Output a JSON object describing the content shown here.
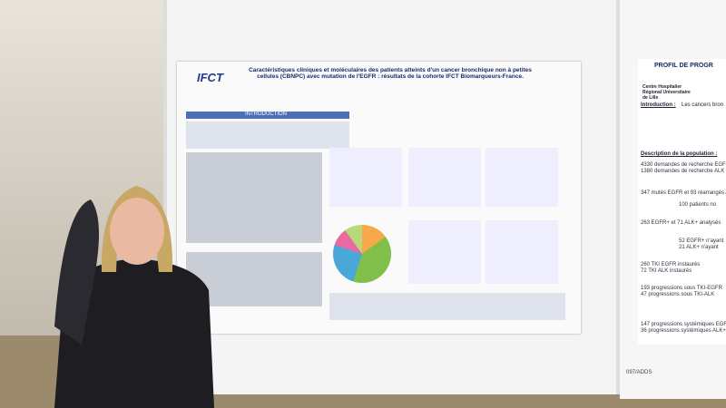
{
  "poster": {
    "logo": "IFCT",
    "title": "Caractéristiques cliniques et moléculaires des patients atteints d'un cancer bronchique non à petites cellules (CBNPC) avec mutation de l'EGFR : résultats de la cohorte IFCT Biomarqueurs-France.",
    "section": "INTRODUCTION"
  },
  "side_poster": {
    "heading": "PROFIL DE PROGR",
    "institution": "Centre Hospitalier Régional Universitaire de Lille",
    "intro_label": "Introduction :",
    "intro_text": "Les cancers bron",
    "description_label": "Description de la population :",
    "flow": [
      "4330 demandes de recherche EGFR",
      "1380 demandes de recherche ALK",
      "347 mutés EGFR et 93 réarrangés ALK",
      "100 patients no",
      "263 EGFR+ et 71 ALK+ analysés",
      "52 EGFR+ n'ayant",
      "21 ALK+ n'ayant",
      "260 TKI EGFR instaurés",
      "72 TKI ALK instaurés",
      "193 progressions sous TKI-EGFR",
      "47 progressions sous TKI-ALK",
      "147 progressions systémiques EGFR+",
      "36 progressions systémiques ALK+"
    ]
  },
  "board_label": "097/ADDS"
}
